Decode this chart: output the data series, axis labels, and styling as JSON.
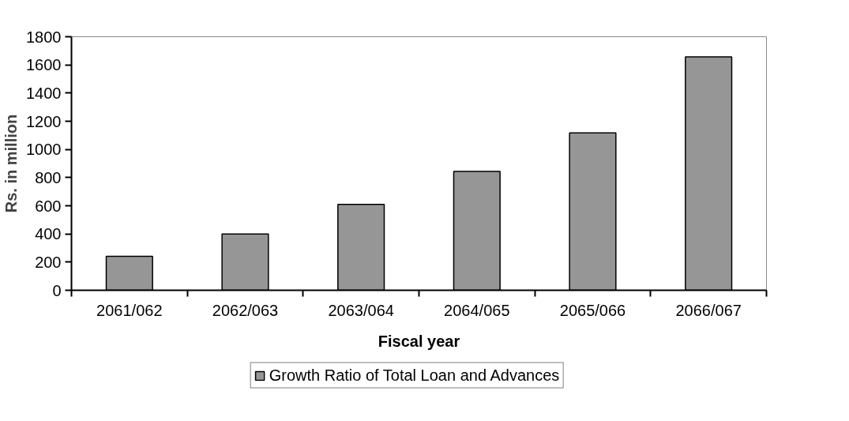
{
  "chart_data": {
    "type": "bar",
    "xlabel": "Fiscal year",
    "ylabel": "Rs. in million",
    "categories": [
      "2061/062",
      "2062/063",
      "2063/064",
      "2064/065",
      "2065/066",
      "2066/067"
    ],
    "series": [
      {
        "name": "Growth Ratio of Total Loan and Advances",
        "color": "#969696",
        "values": [
          241,
          400,
          610,
          844,
          1117,
          1657
        ]
      }
    ],
    "ylim": [
      0,
      1800
    ],
    "yticks": [
      0,
      200,
      400,
      600,
      800,
      1000,
      1200,
      1400,
      1600,
      1800
    ],
    "grid": false,
    "legend": "bottom"
  }
}
